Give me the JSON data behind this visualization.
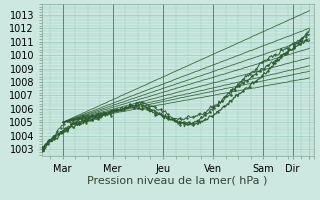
{
  "xlabel": "Pression niveau de la mer( hPa )",
  "bg_color": "#cce8e0",
  "grid_color": "#99ccbb",
  "line_color": "#2d5a2d",
  "ylim": [
    1002.5,
    1013.8
  ],
  "xlim": [
    0,
    130
  ],
  "yticks": [
    1003,
    1004,
    1005,
    1006,
    1007,
    1008,
    1009,
    1010,
    1011,
    1012,
    1013
  ],
  "xtick_positions": [
    10,
    34,
    58,
    82,
    106,
    120,
    128
  ],
  "xtick_labels": [
    "Mar",
    "Mer",
    "Jeu",
    "Ven",
    "Sam",
    "Dir",
    ""
  ],
  "xlabel_fontsize": 8,
  "tick_fontsize": 7
}
